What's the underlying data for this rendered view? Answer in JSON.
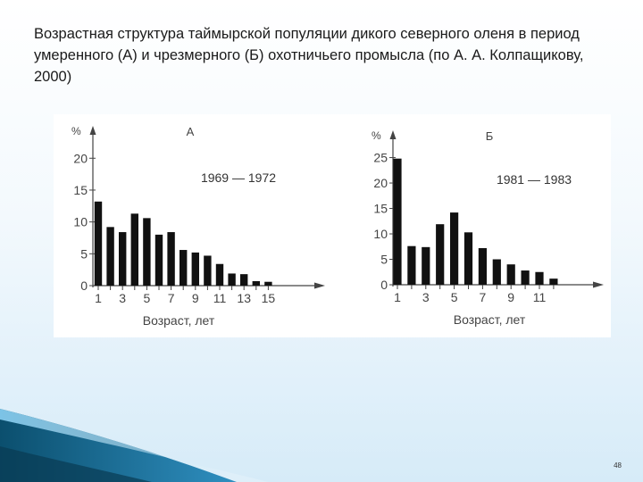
{
  "slide": {
    "title": "Возрастная структура таймырской популяции дикого северного оленя в период умеренного (А) и чрезмерного (Б) охотничьего промысла (по А. А. Колпащикову, 2000)",
    "page_number": "48"
  },
  "colors": {
    "bar": "#111111",
    "accent_dark": "#0b4f6e",
    "accent_light": "#2f8fc0"
  },
  "chart_data": [
    {
      "type": "bar",
      "panel_label": "А",
      "period": "1969 — 1972",
      "ylabel": "%",
      "xlabel": "Возраст, лет",
      "ylim": [
        0,
        22
      ],
      "yticks": [
        0,
        5,
        10,
        15,
        20
      ],
      "categories": [
        1,
        2,
        3,
        4,
        5,
        6,
        7,
        8,
        9,
        10,
        11,
        12,
        13,
        14,
        15
      ],
      "xtick_labels": [
        "1",
        "3",
        "5",
        "7",
        "9",
        "11",
        "13",
        "15"
      ],
      "values": [
        13.2,
        9.2,
        8.4,
        11.3,
        10.6,
        8.0,
        8.4,
        5.6,
        5.2,
        4.7,
        3.4,
        1.9,
        1.8,
        0.7,
        0.6
      ],
      "grid": false
    },
    {
      "type": "bar",
      "panel_label": "Б",
      "period": "1981 — 1983",
      "ylabel": "%",
      "xlabel": "Возраст, лет",
      "ylim": [
        0,
        26.5
      ],
      "yticks": [
        0,
        5,
        10,
        15,
        20,
        25
      ],
      "categories": [
        1,
        2,
        3,
        4,
        5,
        6,
        7,
        8,
        9,
        10,
        11,
        12
      ],
      "xtick_labels": [
        "1",
        "3",
        "5",
        "7",
        "9",
        "11"
      ],
      "values": [
        24.8,
        7.6,
        7.4,
        11.9,
        14.2,
        10.3,
        7.2,
        5.0,
        4.0,
        2.8,
        2.5,
        1.2
      ],
      "grid": false
    }
  ]
}
